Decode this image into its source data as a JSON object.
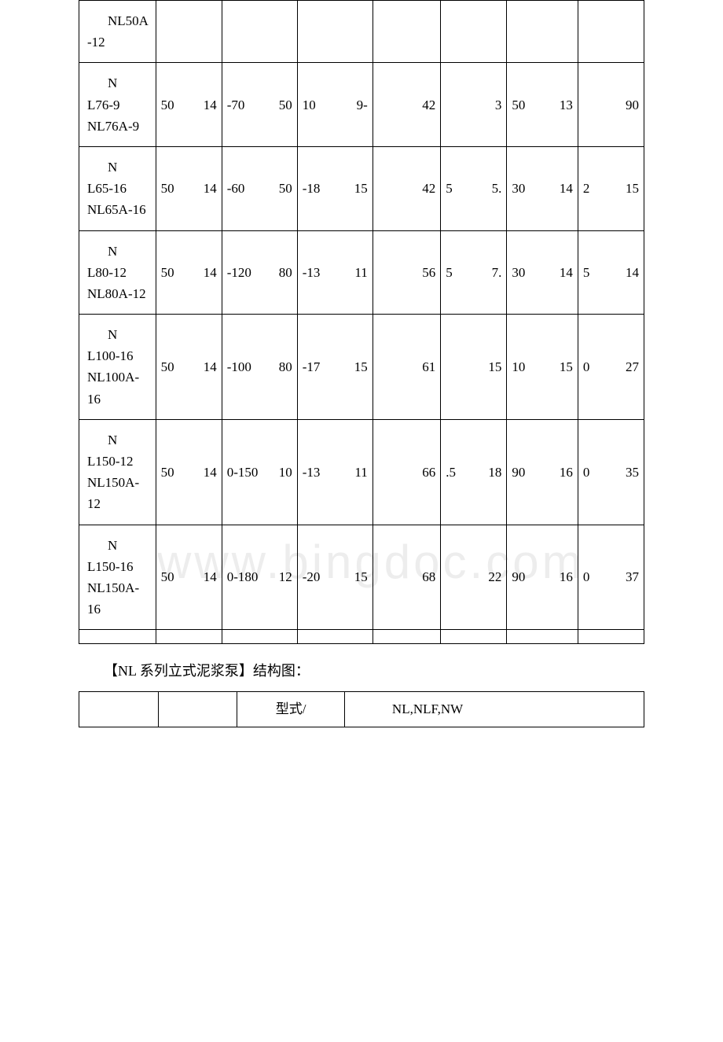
{
  "watermark": "www.bingdoc.com",
  "main_table": {
    "col_widths_pct": [
      12.3,
      10.6,
      12.1,
      12.1,
      10.9,
      10.6,
      11.4,
      10.6
    ],
    "rows": [
      {
        "model_a": "NL50A",
        "model_b": "-12",
        "cells": [
          "",
          "",
          "",
          "",
          "",
          "",
          ""
        ]
      },
      {
        "model_a": "N",
        "model_b": "L76-9 NL76A-9",
        "cells": [
          {
            "a": "50",
            "b": "14"
          },
          {
            "a": "-70",
            "b": "50"
          },
          {
            "a": "10",
            "b": "9-"
          },
          {
            "a": "",
            "b": "42"
          },
          {
            "a": "",
            "b": "3"
          },
          {
            "a": "50",
            "b": "13"
          },
          {
            "a": "",
            "b": "90"
          }
        ]
      },
      {
        "model_a": "N",
        "model_b": "L65-16 NL65A-16",
        "cells": [
          {
            "a": "50",
            "b": "14"
          },
          {
            "a": "-60",
            "b": "50"
          },
          {
            "a": "-18",
            "b": "15"
          },
          {
            "a": "",
            "b": "42"
          },
          {
            "a": "5",
            "b": "5."
          },
          {
            "a": "30",
            "b": "14"
          },
          {
            "a": "2",
            "b": "15"
          }
        ]
      },
      {
        "model_a": "N",
        "model_b": "L80-12 NL80A-12",
        "cells": [
          {
            "a": "50",
            "b": "14"
          },
          {
            "a": "-120",
            "b": "80"
          },
          {
            "a": "-13",
            "b": "11"
          },
          {
            "a": "",
            "b": "56"
          },
          {
            "a": "5",
            "b": "7."
          },
          {
            "a": "30",
            "b": "14"
          },
          {
            "a": "5",
            "b": "14"
          }
        ]
      },
      {
        "model_a": "N",
        "model_b": "L100-16 NL100A-16",
        "cells": [
          {
            "a": "50",
            "b": "14"
          },
          {
            "a": "-100",
            "b": "80"
          },
          {
            "a": "-17",
            "b": "15"
          },
          {
            "a": "",
            "b": "61"
          },
          {
            "a": "",
            "b": "15"
          },
          {
            "a": "10",
            "b": "15"
          },
          {
            "a": "0",
            "b": "27"
          }
        ]
      },
      {
        "model_a": "N",
        "model_b": "L150-12 NL150A-12",
        "cells": [
          {
            "a": "50",
            "b": "14"
          },
          {
            "a": "0-150",
            "b": "10"
          },
          {
            "a": "-13",
            "b": "11"
          },
          {
            "a": "",
            "b": "66"
          },
          {
            "a": ".5",
            "b": "18"
          },
          {
            "a": "90",
            "b": "16"
          },
          {
            "a": "0",
            "b": "35"
          }
        ]
      },
      {
        "model_a": "N",
        "model_b": "L150-16 NL150A-16",
        "cells": [
          {
            "a": "50",
            "b": "14"
          },
          {
            "a": "0-180",
            "b": "12"
          },
          {
            "a": "-20",
            "b": "15"
          },
          {
            "a": "",
            "b": "68"
          },
          {
            "a": "",
            "b": "22"
          },
          {
            "a": "90",
            "b": "16"
          },
          {
            "a": "0",
            "b": "37"
          }
        ]
      }
    ]
  },
  "heading": "【NL 系列立式泥浆泵】结构图：",
  "table2": {
    "label": "型式/",
    "value": "NL,NLF,NW"
  },
  "colors": {
    "border": "#000000",
    "text": "#000000",
    "background": "#ffffff",
    "watermark": "#ededed"
  }
}
